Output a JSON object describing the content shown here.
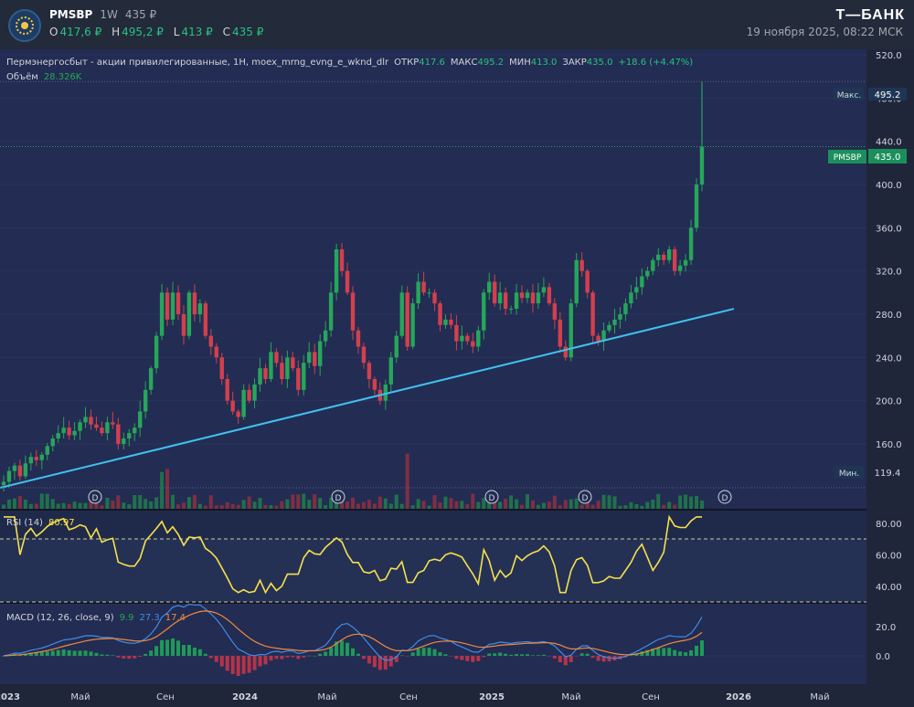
{
  "header": {
    "symbol": "PMSBP",
    "interval": "1W",
    "price": "435 ₽",
    "ohlc": [
      {
        "k": "O",
        "v": "417,6 ₽"
      },
      {
        "k": "H",
        "v": "495,2 ₽"
      },
      {
        "k": "L",
        "v": "413 ₽"
      },
      {
        "k": "C",
        "v": "435 ₽"
      }
    ],
    "brand": "Т—БАНК",
    "datetime": "19 ноября 2025, 08:22 МСК"
  },
  "colors": {
    "background": "#232a3a",
    "up": "#26a65b",
    "down": "#d2404e",
    "trendline": "#3fc1f0",
    "rsi": "#f7e04b",
    "macd": "#3f8ce8",
    "signal": "#f08a3e",
    "close_label": "#1a8f5c",
    "max_label": "#1e3554"
  },
  "chart_data": [
    {
      "type": "candlestick",
      "title": "Пермэнергосбыт - акции привилегированные, 1Н, moex_mrng_evng_e_wknd_dlr",
      "legend": [
        {
          "k": "ОТКР",
          "v": "417.6"
        },
        {
          "k": "МАКС",
          "v": "495.2"
        },
        {
          "k": "МИН",
          "v": "413.0"
        },
        {
          "k": "ЗАКР",
          "v": "435.0"
        },
        {
          "k": "",
          "v": "+18.6 (+4.47%)"
        }
      ],
      "volume_label": "Объём",
      "volume_value": "28.326K",
      "ylim": [
        100,
        525
      ],
      "y_ticks": [
        "520.0",
        "480.0",
        "440.0",
        "400.0",
        "360.0",
        "320.0",
        "280.0",
        "240.0",
        "200.0",
        "160.0"
      ],
      "max_label": "Макс.",
      "max_value": "495.2",
      "min_label": "Мин.",
      "min_value": "119.4",
      "symbol_label": "PMSBP",
      "last_value": "435.0",
      "x_ticks": [
        "2023",
        "Май",
        "Сен",
        "2024",
        "Май",
        "Сен",
        "2025",
        "Май",
        "Сен",
        "2026",
        "Май"
      ],
      "dividend_marker": "D",
      "trendline": {
        "start": [
          "2023-01-02",
          119.4
        ],
        "end": [
          "2026-01-05",
          285
        ]
      },
      "closes": [
        125,
        135,
        140,
        130,
        142,
        148,
        145,
        150,
        158,
        165,
        170,
        175,
        168,
        172,
        180,
        185,
        178,
        175,
        170,
        180,
        178,
        160,
        165,
        170,
        175,
        190,
        210,
        230,
        260,
        300,
        275,
        300,
        280,
        260,
        300,
        280,
        290,
        260,
        250,
        240,
        220,
        200,
        190,
        185,
        210,
        200,
        215,
        230,
        220,
        245,
        235,
        220,
        240,
        230,
        210,
        235,
        245,
        232,
        255,
        265,
        300,
        340,
        320,
        300,
        265,
        250,
        235,
        220,
        210,
        200,
        215,
        240,
        260,
        300,
        250,
        290,
        310,
        300,
        300,
        290,
        270,
        275,
        270,
        255,
        260,
        255,
        250,
        265,
        300,
        310,
        290,
        300,
        285,
        285,
        300,
        295,
        300,
        290,
        300,
        305,
        290,
        275,
        250,
        240,
        290,
        330,
        320,
        300,
        260,
        255,
        265,
        270,
        275,
        280,
        290,
        300,
        305,
        315,
        320,
        330,
        335,
        330,
        340,
        320,
        325,
        330,
        360,
        400,
        435
      ]
    },
    {
      "type": "line",
      "title": "RSI (14)",
      "value": "80.97",
      "ylim": [
        30,
        88
      ],
      "y_ticks": [
        "80.00",
        "60.00",
        "40.00"
      ],
      "bands": [
        70,
        30
      ]
    },
    {
      "type": "line",
      "title": "MACD (12, 26, close, 9)",
      "values": [
        "9.9",
        "27.3",
        "17.4"
      ],
      "y_ticks": [
        "20.0",
        "0.0"
      ]
    }
  ]
}
